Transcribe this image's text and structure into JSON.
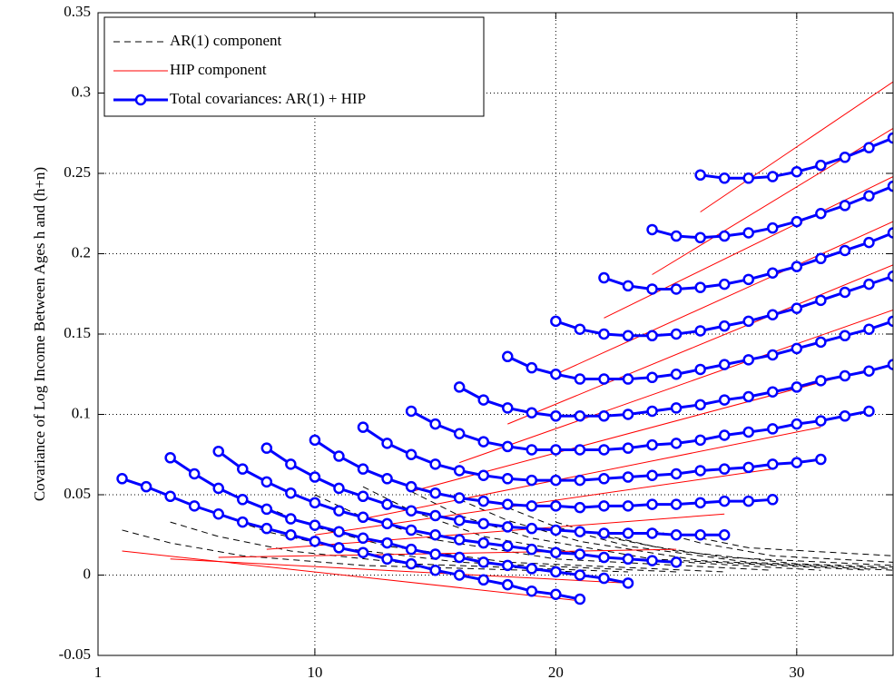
{
  "chart_data": {
    "type": "line",
    "ylabel": "Covariance of Log Income Between Ages h and (h+n)",
    "xlim": [
      1,
      34
    ],
    "ylim": [
      -0.05,
      0.35
    ],
    "xticks": [
      1,
      10,
      20,
      30
    ],
    "yticks": [
      -0.05,
      0,
      0.05,
      0.1,
      0.15,
      0.2,
      0.25,
      0.3,
      0.35
    ],
    "grid": true,
    "legend": "upper left",
    "series": [
      {
        "name": "AR(1) component",
        "color": "#000000",
        "dash": true,
        "marker": false,
        "width": 1,
        "curves": [
          {
            "x": [
              2,
              4,
              7,
              12,
              21
            ],
            "values": [
              0.028,
              0.02,
              0.012,
              0.006,
              0.002
            ]
          },
          {
            "x": [
              4,
              6,
              9,
              14,
              23
            ],
            "values": [
              0.033,
              0.024,
              0.015,
              0.007,
              0.002
            ]
          },
          {
            "x": [
              6,
              8,
              11,
              16,
              25
            ],
            "values": [
              0.038,
              0.027,
              0.017,
              0.008,
              0.002
            ]
          },
          {
            "x": [
              8,
              10,
              13,
              18,
              27
            ],
            "values": [
              0.042,
              0.03,
              0.018,
              0.008,
              0.002
            ]
          },
          {
            "x": [
              10,
              12,
              15,
              20,
              29
            ],
            "values": [
              0.05,
              0.036,
              0.022,
              0.01,
              0.003
            ]
          },
          {
            "x": [
              12,
              14,
              17,
              22,
              31
            ],
            "values": [
              0.055,
              0.04,
              0.024,
              0.011,
              0.003
            ]
          },
          {
            "x": [
              14,
              16,
              19,
              24,
              33
            ],
            "values": [
              0.052,
              0.037,
              0.023,
              0.01,
              0.003
            ]
          },
          {
            "x": [
              16,
              18,
              21,
              26,
              34
            ],
            "values": [
              0.047,
              0.034,
              0.021,
              0.009,
              0.003
            ]
          },
          {
            "x": [
              18,
              20,
              23,
              28,
              34
            ],
            "values": [
              0.042,
              0.03,
              0.018,
              0.008,
              0.004
            ]
          },
          {
            "x": [
              20,
              22,
              25,
              30,
              34
            ],
            "values": [
              0.033,
              0.024,
              0.015,
              0.007,
              0.005
            ]
          },
          {
            "x": [
              22,
              24,
              27,
              34
            ],
            "values": [
              0.025,
              0.018,
              0.011,
              0.006
            ]
          },
          {
            "x": [
              24,
              26,
              29,
              34
            ],
            "values": [
              0.028,
              0.02,
              0.012,
              0.008
            ]
          },
          {
            "x": [
              26,
              28,
              34
            ],
            "values": [
              0.023,
              0.017,
              0.012
            ]
          }
        ]
      },
      {
        "name": "HIP component",
        "color": "#ff0000",
        "dash": false,
        "marker": false,
        "width": 1,
        "curves": [
          {
            "x": [
              2,
              21
            ],
            "values": [
              0.015,
              -0.016
            ]
          },
          {
            "x": [
              4,
              23
            ],
            "values": [
              0.01,
              -0.005
            ]
          },
          {
            "x": [
              6,
              25
            ],
            "values": [
              0.011,
              0.016
            ]
          },
          {
            "x": [
              8,
              27
            ],
            "values": [
              0.016,
              0.038
            ]
          },
          {
            "x": [
              10,
              29
            ],
            "values": [
              0.025,
              0.066
            ]
          },
          {
            "x": [
              12,
              31
            ],
            "values": [
              0.035,
              0.092
            ]
          },
          {
            "x": [
              14,
              33
            ],
            "values": [
              0.052,
              0.128
            ]
          },
          {
            "x": [
              16,
              34
            ],
            "values": [
              0.07,
              0.165
            ]
          },
          {
            "x": [
              18,
              34
            ],
            "values": [
              0.094,
              0.193
            ]
          },
          {
            "x": [
              20,
              34
            ],
            "values": [
              0.125,
              0.22
            ]
          },
          {
            "x": [
              22,
              34
            ],
            "values": [
              0.16,
              0.248
            ]
          },
          {
            "x": [
              24,
              34
            ],
            "values": [
              0.187,
              0.278
            ]
          },
          {
            "x": [
              26,
              34
            ],
            "values": [
              0.226,
              0.307
            ]
          }
        ]
      },
      {
        "name": "Total covariances: AR(1) + HIP",
        "color": "#0000ff",
        "dash": false,
        "marker": true,
        "width": 3,
        "curves": [
          {
            "x": [
              2,
              3,
              4,
              5,
              6,
              7,
              8,
              9,
              10,
              11,
              12,
              13,
              14,
              15,
              16,
              17,
              18,
              19,
              20,
              21
            ],
            "values": [
              0.06,
              0.055,
              0.049,
              0.043,
              0.038,
              0.033,
              0.029,
              0.025,
              0.021,
              0.017,
              0.014,
              0.01,
              0.007,
              0.003,
              0.0,
              -0.003,
              -0.006,
              -0.01,
              -0.012,
              -0.015
            ]
          },
          {
            "x": [
              4,
              5,
              6,
              7,
              8,
              9,
              10,
              11,
              12,
              13,
              14,
              15,
              16,
              17,
              18,
              19,
              20,
              21,
              22,
              23
            ],
            "values": [
              0.073,
              0.063,
              0.054,
              0.047,
              0.041,
              0.035,
              0.031,
              0.027,
              0.023,
              0.02,
              0.016,
              0.013,
              0.011,
              0.008,
              0.006,
              0.004,
              0.002,
              0.0,
              -0.002,
              -0.005
            ]
          },
          {
            "x": [
              6,
              7,
              8,
              9,
              10,
              11,
              12,
              13,
              14,
              15,
              16,
              17,
              18,
              19,
              20,
              21,
              22,
              23,
              24,
              25
            ],
            "values": [
              0.077,
              0.066,
              0.058,
              0.051,
              0.045,
              0.04,
              0.036,
              0.032,
              0.028,
              0.025,
              0.022,
              0.02,
              0.018,
              0.016,
              0.014,
              0.013,
              0.011,
              0.01,
              0.009,
              0.008
            ]
          },
          {
            "x": [
              8,
              9,
              10,
              11,
              12,
              13,
              14,
              15,
              16,
              17,
              18,
              19,
              20,
              21,
              22,
              23,
              24,
              25,
              26,
              27
            ],
            "values": [
              0.079,
              0.069,
              0.061,
              0.054,
              0.049,
              0.044,
              0.04,
              0.037,
              0.034,
              0.032,
              0.03,
              0.029,
              0.028,
              0.027,
              0.026,
              0.026,
              0.026,
              0.025,
              0.025,
              0.025
            ]
          },
          {
            "x": [
              10,
              11,
              12,
              13,
              14,
              15,
              16,
              17,
              18,
              19,
              20,
              21,
              22,
              23,
              24,
              25,
              26,
              27,
              28,
              29
            ],
            "values": [
              0.084,
              0.074,
              0.066,
              0.06,
              0.055,
              0.051,
              0.048,
              0.046,
              0.044,
              0.043,
              0.043,
              0.042,
              0.043,
              0.043,
              0.044,
              0.044,
              0.045,
              0.046,
              0.046,
              0.047
            ]
          },
          {
            "x": [
              12,
              13,
              14,
              15,
              16,
              17,
              18,
              19,
              20,
              21,
              22,
              23,
              24,
              25,
              26,
              27,
              28,
              29,
              30,
              31
            ],
            "values": [
              0.092,
              0.082,
              0.075,
              0.069,
              0.065,
              0.062,
              0.06,
              0.059,
              0.059,
              0.059,
              0.06,
              0.061,
              0.062,
              0.063,
              0.065,
              0.066,
              0.067,
              0.069,
              0.07,
              0.072
            ]
          },
          {
            "x": [
              14,
              15,
              16,
              17,
              18,
              19,
              20,
              21,
              22,
              23,
              24,
              25,
              26,
              27,
              28,
              29,
              30,
              31,
              32,
              33
            ],
            "values": [
              0.102,
              0.094,
              0.088,
              0.083,
              0.08,
              0.078,
              0.078,
              0.078,
              0.078,
              0.079,
              0.081,
              0.082,
              0.084,
              0.087,
              0.089,
              0.091,
              0.094,
              0.096,
              0.099,
              0.102
            ]
          },
          {
            "x": [
              16,
              17,
              18,
              19,
              20,
              21,
              22,
              23,
              24,
              25,
              26,
              27,
              28,
              29,
              30,
              31,
              32,
              33,
              34
            ],
            "values": [
              0.117,
              0.109,
              0.104,
              0.101,
              0.099,
              0.099,
              0.099,
              0.1,
              0.102,
              0.104,
              0.106,
              0.109,
              0.111,
              0.114,
              0.117,
              0.121,
              0.124,
              0.127,
              0.131
            ]
          },
          {
            "x": [
              18,
              19,
              20,
              21,
              22,
              23,
              24,
              25,
              26,
              27,
              28,
              29,
              30,
              31,
              32,
              33,
              34
            ],
            "values": [
              0.136,
              0.129,
              0.125,
              0.122,
              0.122,
              0.122,
              0.123,
              0.125,
              0.128,
              0.131,
              0.134,
              0.137,
              0.141,
              0.145,
              0.149,
              0.153,
              0.158
            ]
          },
          {
            "x": [
              20,
              21,
              22,
              23,
              24,
              25,
              26,
              27,
              28,
              29,
              30,
              31,
              32,
              33,
              34
            ],
            "values": [
              0.158,
              0.153,
              0.15,
              0.149,
              0.149,
              0.15,
              0.152,
              0.155,
              0.158,
              0.162,
              0.166,
              0.171,
              0.176,
              0.181,
              0.186
            ]
          },
          {
            "x": [
              22,
              23,
              24,
              25,
              26,
              27,
              28,
              29,
              30,
              31,
              32,
              33,
              34
            ],
            "values": [
              0.185,
              0.18,
              0.178,
              0.178,
              0.179,
              0.181,
              0.184,
              0.188,
              0.192,
              0.197,
              0.202,
              0.207,
              0.213
            ]
          },
          {
            "x": [
              24,
              25,
              26,
              27,
              28,
              29,
              30,
              31,
              32,
              33,
              34
            ],
            "values": [
              0.215,
              0.211,
              0.21,
              0.211,
              0.213,
              0.216,
              0.22,
              0.225,
              0.23,
              0.236,
              0.242
            ]
          },
          {
            "x": [
              26,
              27,
              28,
              29,
              30,
              31,
              32,
              33,
              34
            ],
            "values": [
              0.249,
              0.247,
              0.247,
              0.248,
              0.251,
              0.255,
              0.26,
              0.266,
              0.272
            ]
          }
        ]
      }
    ]
  }
}
